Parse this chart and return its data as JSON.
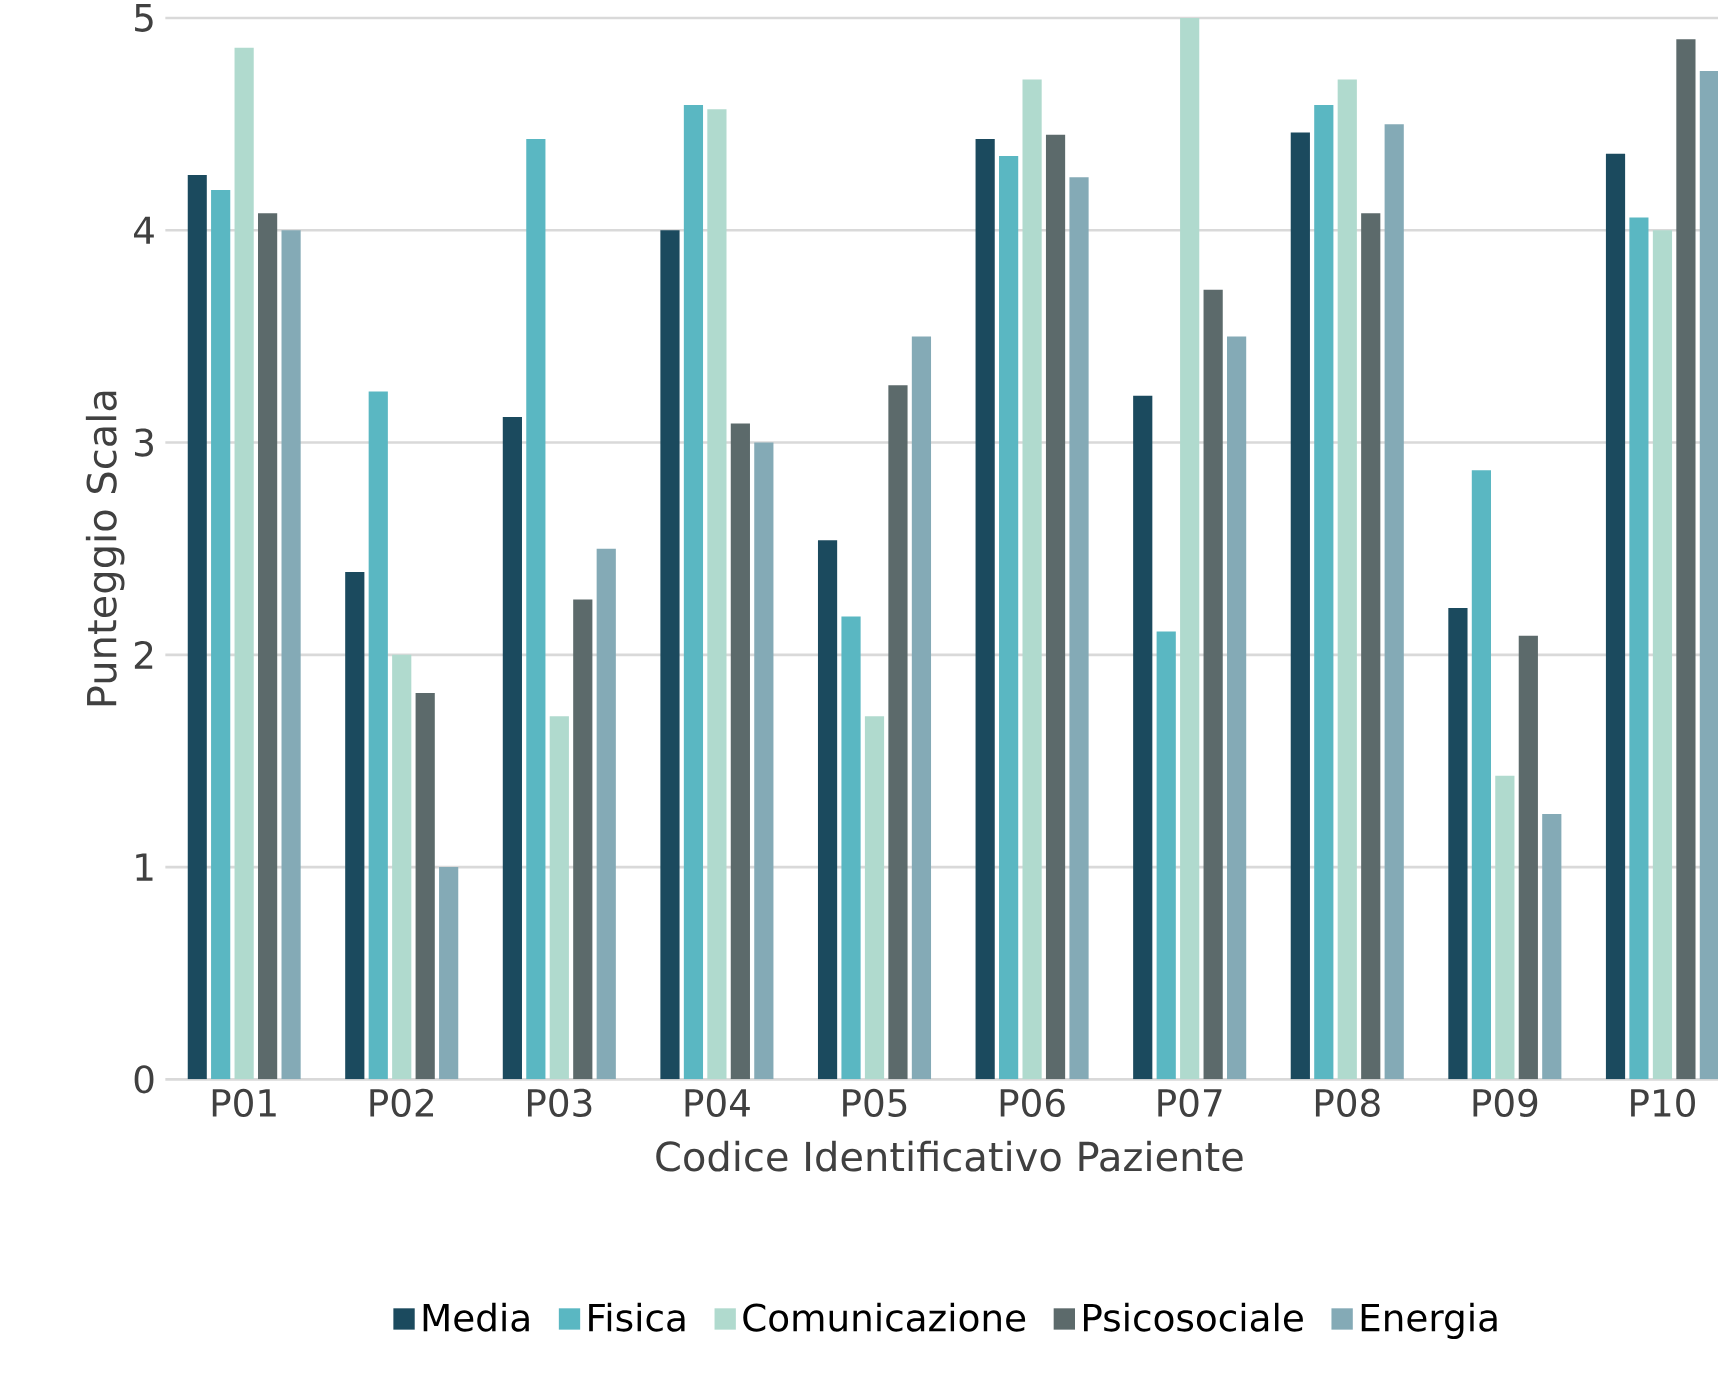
{
  "chart_data": {
    "type": "bar",
    "xlabel": "Codice Identificativo Paziente",
    "ylabel": "Punteggio Scala",
    "categories": [
      "P01",
      "P02",
      "P03",
      "P04",
      "P05",
      "P06",
      "P07",
      "P08",
      "P09",
      "P10"
    ],
    "series": [
      {
        "name": "Media",
        "color": "#1b4a5e",
        "values": [
          4.26,
          2.39,
          3.12,
          4.0,
          2.54,
          4.43,
          3.22,
          4.46,
          2.22,
          4.36
        ]
      },
      {
        "name": "Fisica",
        "color": "#5ab7c2",
        "values": [
          4.19,
          3.24,
          4.43,
          4.59,
          2.18,
          4.35,
          2.11,
          4.59,
          2.87,
          4.06
        ]
      },
      {
        "name": "Comunicazione",
        "color": "#b0dace",
        "values": [
          4.86,
          2.0,
          1.71,
          4.57,
          1.71,
          4.71,
          5.0,
          4.71,
          1.43,
          4.0
        ]
      },
      {
        "name": "Psicosociale",
        "color": "#5c6a6b",
        "values": [
          4.08,
          1.82,
          2.26,
          3.09,
          3.27,
          4.45,
          3.72,
          4.08,
          2.09,
          4.9
        ]
      },
      {
        "name": "Energia",
        "color": "#84aab6",
        "values": [
          4.0,
          1.0,
          2.5,
          3.0,
          3.5,
          4.25,
          3.5,
          4.5,
          1.25,
          4.75
        ]
      }
    ],
    "ylim": [
      0,
      5
    ],
    "yticks": [
      0,
      1,
      2,
      3,
      4,
      5
    ],
    "grid": "y",
    "legend": "bottom"
  }
}
